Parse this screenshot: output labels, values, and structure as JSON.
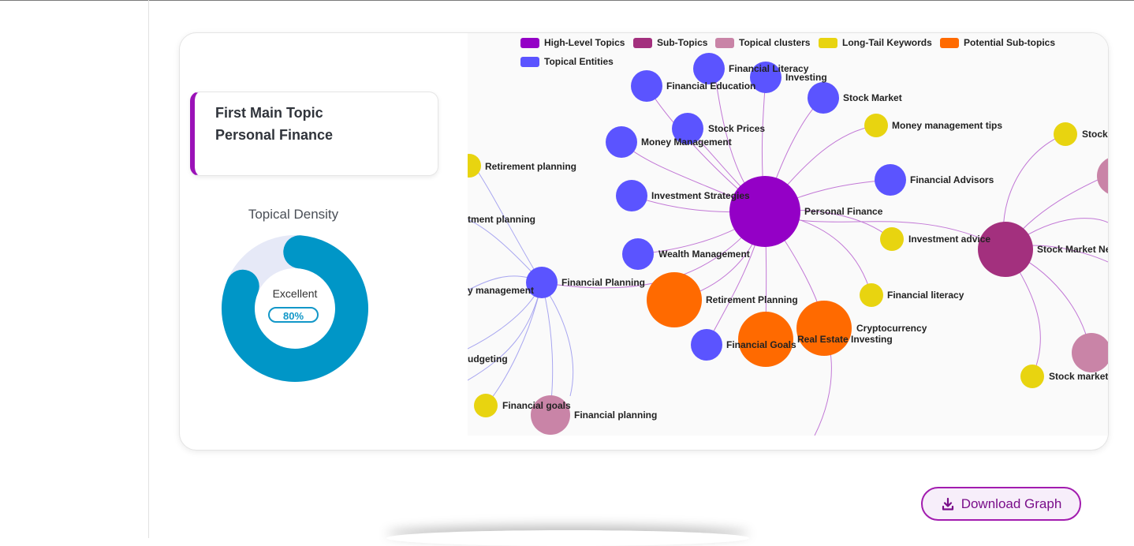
{
  "topic_card": {
    "line1": "First Main Topic",
    "line2": "Personal Finance"
  },
  "density": {
    "title": "Topical Density",
    "status": "Excellent",
    "percent_label": "80%",
    "value": 80
  },
  "legend": [
    {
      "label": "High-Level Topics",
      "color": "#9400c6"
    },
    {
      "label": "Sub-Topics",
      "color": "#a3307e"
    },
    {
      "label": "Topical clusters",
      "color": "#c984a7"
    },
    {
      "label": "Long-Tail Keywords",
      "color": "#e8d410"
    },
    {
      "label": "Potential Sub-topics",
      "color": "#ff6a00"
    },
    {
      "label": "Topical Entities",
      "color": "#5b54ff"
    }
  ],
  "nodes": {
    "personal_finance": "Personal Finance",
    "financial_literacy_entity": "Financial Literacy",
    "investing": "Investing",
    "financial_education": "Financial Education",
    "stock_market": "Stock Market",
    "stock_prices": "Stock Prices",
    "money_management": "Money Management",
    "money_management_tips": "Money management tips",
    "stock_trunc": "Stock",
    "retirement_planning_kw": "Retirement planning",
    "financial_advisors": "Financial Advisors",
    "investment_strategies": "Investment Strategies",
    "investment_planning_trunc": "tment planning",
    "investment_advice": "Investment advice",
    "stock_market_news": "Stock Market Ne",
    "wealth_management": "Wealth Management",
    "financial_planning": "Financial Planning",
    "money_management_trunc": "y management",
    "retirement_planning": "Retirement Planning",
    "financial_literacy_kw": "Financial literacy",
    "cryptocurrency": "Cryptocurrency",
    "real_estate_investing": "Real Estate Investing",
    "financial_goals": "Financial Goals",
    "budgeting": "udgeting",
    "stock_market_trunc": "Stock market",
    "financial_goals_kw": "Financial goals",
    "financial_planning_cluster": "Financial planning"
  },
  "download": {
    "label": "Download Graph"
  }
}
